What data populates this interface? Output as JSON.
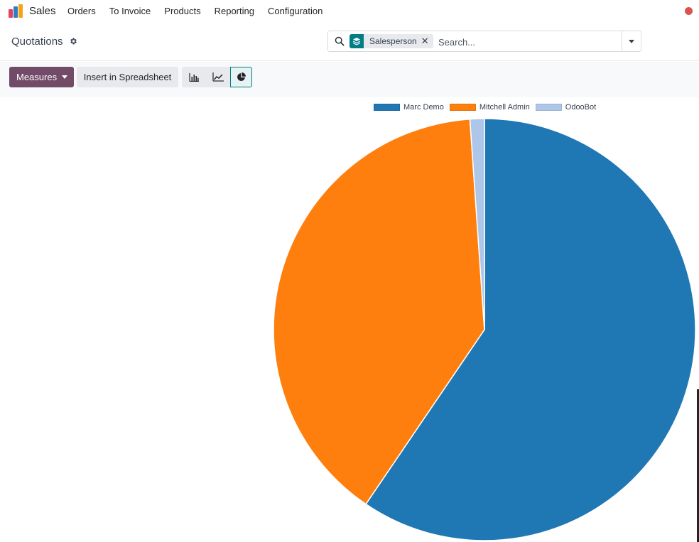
{
  "app": {
    "name": "Sales",
    "logo_colors": [
      "#e4405f",
      "#f3a51a",
      "#2d7ec1"
    ]
  },
  "nav": {
    "items": [
      {
        "label": "Orders"
      },
      {
        "label": "To Invoice"
      },
      {
        "label": "Products"
      },
      {
        "label": "Reporting"
      },
      {
        "label": "Configuration"
      }
    ]
  },
  "control_panel": {
    "title": "Quotations",
    "search": {
      "facet_label": "Salesperson",
      "placeholder": "Search..."
    }
  },
  "toolbar": {
    "measures_label": "Measures",
    "insert_label": "Insert in Spreadsheet",
    "views": [
      "bar-chart-icon",
      "line-chart-icon",
      "pie-chart-icon"
    ],
    "active_view": "pie-chart-icon"
  },
  "colors": {
    "brand": "#714b67",
    "accent": "#017e84",
    "status_dot": "#d9534f"
  },
  "chart_data": {
    "type": "pie",
    "legend_position": "top",
    "series": [
      {
        "name": "Marc Demo",
        "value": 59.5,
        "color": "#1f77b4"
      },
      {
        "name": "Mitchell Admin",
        "value": 39.4,
        "color": "#ff7f0e"
      },
      {
        "name": "OdooBot",
        "value": 1.1,
        "color": "#aec7e8"
      }
    ]
  }
}
